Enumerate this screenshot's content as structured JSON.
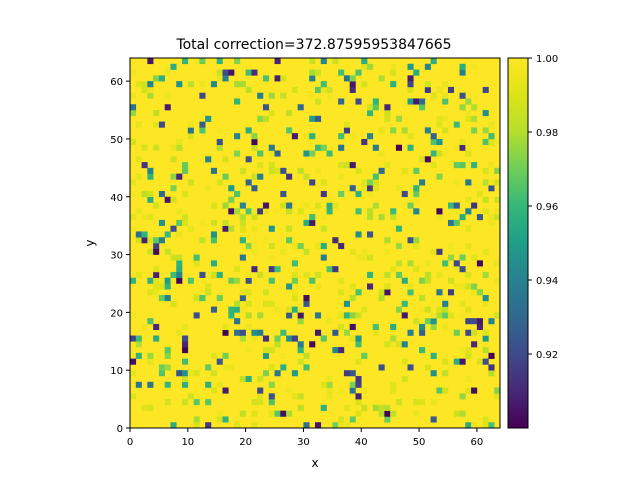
{
  "chart_data": {
    "type": "heatmap",
    "title": "Total correction=372.87595953847665",
    "xlabel": "x",
    "ylabel": "y",
    "xlim": [
      0,
      64
    ],
    "ylim": [
      0,
      64
    ],
    "grid_size": [
      64,
      64
    ],
    "x_ticks": [
      0,
      10,
      20,
      30,
      40,
      50,
      60
    ],
    "y_ticks": [
      0,
      10,
      20,
      30,
      40,
      50,
      60
    ],
    "colorbar": {
      "colormap": "viridis",
      "range": [
        0.9,
        1.0
      ],
      "ticks": [
        0.92,
        0.94,
        0.96,
        0.98,
        1.0
      ],
      "tick_labels": [
        "0.92",
        "0.94",
        "0.96",
        "0.98",
        "1.00"
      ]
    },
    "values_description": "Most cells 1.00; scattered cells between approximately 0.90 and 0.99",
    "dominant_value": 1.0,
    "colors": {
      "high": "#fde725",
      "mid": "#21918c",
      "low": "#440154"
    }
  }
}
